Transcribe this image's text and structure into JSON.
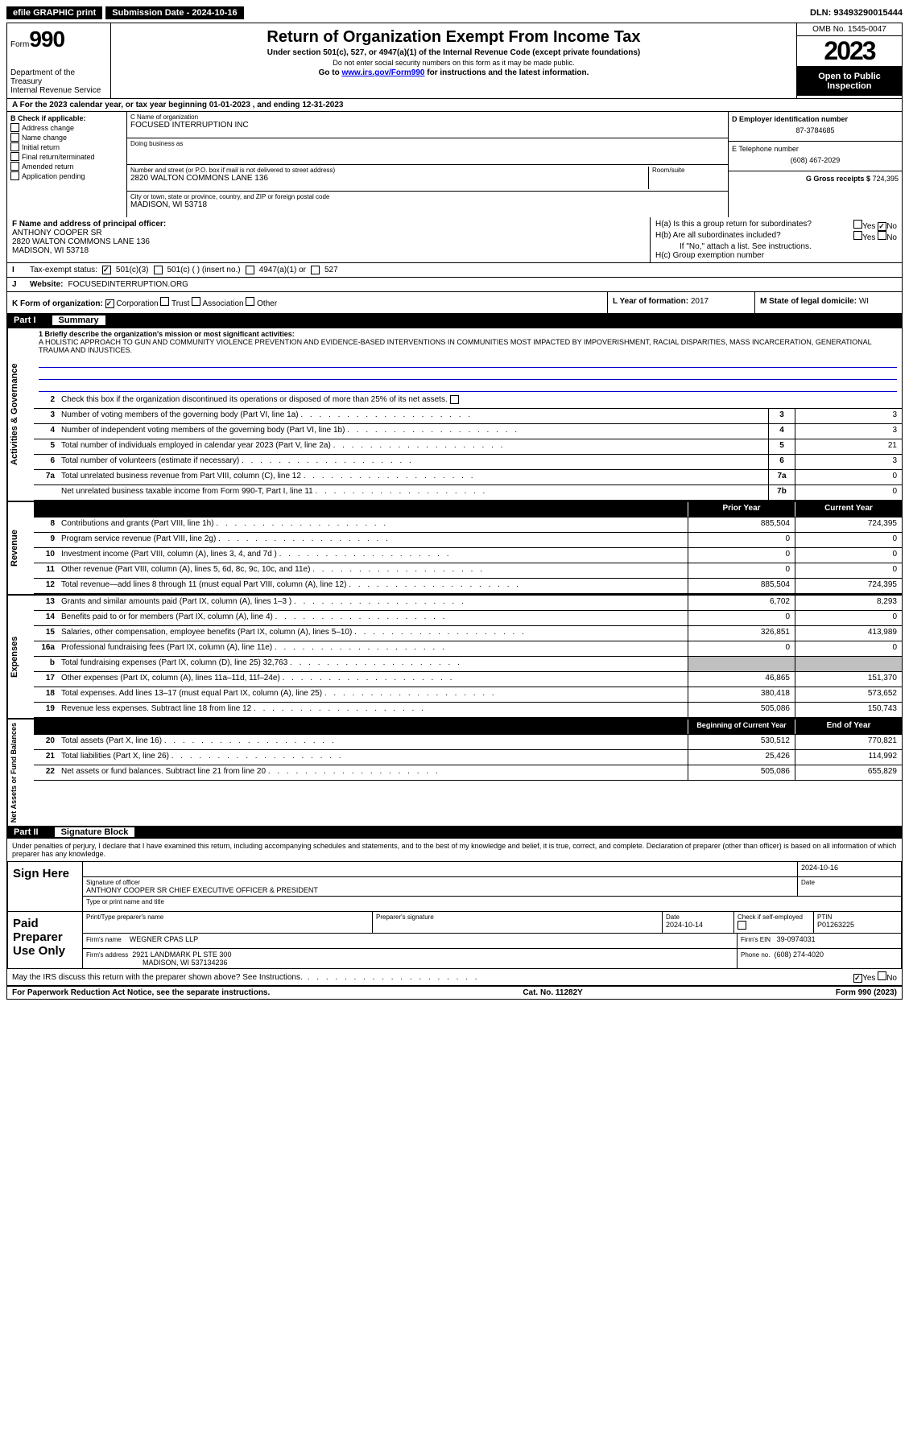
{
  "topbar": {
    "efile": "efile GRAPHIC print",
    "submission_label": "Submission Date - 2024-10-16",
    "dln": "DLN: 93493290015444"
  },
  "header": {
    "form_word": "Form",
    "form_num": "990",
    "dept": "Department of the Treasury",
    "irs": "Internal Revenue Service",
    "title": "Return of Organization Exempt From Income Tax",
    "sub1": "Under section 501(c), 527, or 4947(a)(1) of the Internal Revenue Code (except private foundations)",
    "sub2": "Do not enter social security numbers on this form as it may be made public.",
    "sub3_pre": "Go to ",
    "sub3_link": "www.irs.gov/Form990",
    "sub3_post": " for instructions and the latest information.",
    "omb": "OMB No. 1545-0047",
    "year": "2023",
    "open": "Open to Public Inspection"
  },
  "rowA": "A For the 2023 calendar year, or tax year beginning 01-01-2023    , and ending 12-31-2023",
  "colB": {
    "hdr": "B Check if applicable:",
    "items": [
      "Address change",
      "Name change",
      "Initial return",
      "Final return/terminated",
      "Amended return",
      "Application pending"
    ]
  },
  "colC": {
    "name_lbl": "C Name of organization",
    "name": "FOCUSED INTERRUPTION INC",
    "dba_lbl": "Doing business as",
    "dba": "",
    "addr_lbl": "Number and street (or P.O. box if mail is not delivered to street address)",
    "addr": "2820 WALTON COMMONS LANE 136",
    "room_lbl": "Room/suite",
    "city_lbl": "City or town, state or province, country, and ZIP or foreign postal code",
    "city": "MADISON, WI  53718"
  },
  "colDE": {
    "d_lbl": "D Employer identification number",
    "d_val": "87-3784685",
    "e_lbl": "E Telephone number",
    "e_val": "(608) 467-2029",
    "g_lbl": "G Gross receipts $ ",
    "g_val": "724,395"
  },
  "rowF": {
    "lbl": "F  Name and address of principal officer:",
    "name": "ANTHONY COOPER SR",
    "addr1": "2820 WALTON COMMONS LANE 136",
    "addr2": "MADISON, WI  53718"
  },
  "rowH": {
    "ha": "H(a)  Is this a group return for subordinates?",
    "hb": "H(b)  Are all subordinates included?",
    "hb_note": "If \"No,\" attach a list. See instructions.",
    "hc": "H(c)  Group exemption number",
    "yes": "Yes",
    "no": "No"
  },
  "rowI": {
    "lbl": "Tax-exempt status:",
    "c3": "501(c)(3)",
    "c_other": "501(c) (  ) (insert no.)",
    "a4947": "4947(a)(1) or",
    "s527": "527"
  },
  "rowJ": {
    "lbl": "Website:",
    "val": "FOCUSEDINTERRUPTION.ORG"
  },
  "rowK": {
    "lbl": "K Form of organization:",
    "corp": "Corporation",
    "trust": "Trust",
    "assoc": "Association",
    "other": "Other"
  },
  "rowL": {
    "lbl": "L Year of formation: ",
    "val": "2017"
  },
  "rowM": {
    "lbl": "M State of legal domicile: ",
    "val": "WI"
  },
  "part1": {
    "num": "Part I",
    "title": "Summary"
  },
  "part2": {
    "num": "Part II",
    "title": "Signature Block"
  },
  "side_labels": {
    "ag": "Activities & Governance",
    "rev": "Revenue",
    "exp": "Expenses",
    "na": "Net Assets or Fund Balances"
  },
  "mission": {
    "lbl": "1  Briefly describe the organization's mission or most significant activities:",
    "text": "A HOLISTIC APPROACH TO GUN AND COMMUNITY VIOLENCE PREVENTION AND EVIDENCE-BASED INTERVENTIONS IN COMMUNITIES MOST IMPACTED BY IMPOVERISHMENT, RACIAL DISPARITIES, MASS INCARCERATION, GENERATIONAL TRAUMA AND INJUSTICES."
  },
  "line2": "Check this box       if the organization discontinued its operations or disposed of more than 25% of its net assets.",
  "lines_simple": [
    {
      "n": "3",
      "t": "Number of voting members of the governing body (Part VI, line 1a)",
      "b": "3",
      "v": "3"
    },
    {
      "n": "4",
      "t": "Number of independent voting members of the governing body (Part VI, line 1b)",
      "b": "4",
      "v": "3"
    },
    {
      "n": "5",
      "t": "Total number of individuals employed in calendar year 2023 (Part V, line 2a)",
      "b": "5",
      "v": "21"
    },
    {
      "n": "6",
      "t": "Total number of volunteers (estimate if necessary)",
      "b": "6",
      "v": "3"
    },
    {
      "n": "7a",
      "t": "Total unrelated business revenue from Part VIII, column (C), line 12",
      "b": "7a",
      "v": "0"
    },
    {
      "n": "",
      "t": "Net unrelated business taxable income from Form 990-T, Part I, line 11",
      "b": "7b",
      "v": "0"
    }
  ],
  "year_headers": {
    "prior": "Prior Year",
    "current": "Current Year",
    "boy": "Beginning of Current Year",
    "eoy": "End of Year"
  },
  "revenue_lines": [
    {
      "n": "8",
      "t": "Contributions and grants (Part VIII, line 1h)",
      "p": "885,504",
      "c": "724,395"
    },
    {
      "n": "9",
      "t": "Program service revenue (Part VIII, line 2g)",
      "p": "0",
      "c": "0"
    },
    {
      "n": "10",
      "t": "Investment income (Part VIII, column (A), lines 3, 4, and 7d )",
      "p": "0",
      "c": "0"
    },
    {
      "n": "11",
      "t": "Other revenue (Part VIII, column (A), lines 5, 6d, 8c, 9c, 10c, and 11e)",
      "p": "0",
      "c": "0"
    },
    {
      "n": "12",
      "t": "Total revenue—add lines 8 through 11 (must equal Part VIII, column (A), line 12)",
      "p": "885,504",
      "c": "724,395"
    }
  ],
  "expense_lines": [
    {
      "n": "13",
      "t": "Grants and similar amounts paid (Part IX, column (A), lines 1–3 )",
      "p": "6,702",
      "c": "8,293"
    },
    {
      "n": "14",
      "t": "Benefits paid to or for members (Part IX, column (A), line 4)",
      "p": "0",
      "c": "0"
    },
    {
      "n": "15",
      "t": "Salaries, other compensation, employee benefits (Part IX, column (A), lines 5–10)",
      "p": "326,851",
      "c": "413,989"
    },
    {
      "n": "16a",
      "t": "Professional fundraising fees (Part IX, column (A), line 11e)",
      "p": "0",
      "c": "0"
    },
    {
      "n": "b",
      "t": "Total fundraising expenses (Part IX, column (D), line 25) 32,763",
      "p": "__shaded__",
      "c": "__shaded__"
    },
    {
      "n": "17",
      "t": "Other expenses (Part IX, column (A), lines 11a–11d, 11f–24e)",
      "p": "46,865",
      "c": "151,370"
    },
    {
      "n": "18",
      "t": "Total expenses. Add lines 13–17 (must equal Part IX, column (A), line 25)",
      "p": "380,418",
      "c": "573,652"
    },
    {
      "n": "19",
      "t": "Revenue less expenses. Subtract line 18 from line 12",
      "p": "505,086",
      "c": "150,743"
    }
  ],
  "na_lines": [
    {
      "n": "20",
      "t": "Total assets (Part X, line 16)",
      "p": "530,512",
      "c": "770,821"
    },
    {
      "n": "21",
      "t": "Total liabilities (Part X, line 26)",
      "p": "25,426",
      "c": "114,992"
    },
    {
      "n": "22",
      "t": "Net assets or fund balances. Subtract line 21 from line 20",
      "p": "505,086",
      "c": "655,829"
    }
  ],
  "sig": {
    "perjury": "Under penalties of perjury, I declare that I have examined this return, including accompanying schedules and statements, and to the best of my knowledge and belief, it is true, correct, and complete. Declaration of preparer (other than officer) is based on all information of which preparer has any knowledge.",
    "sign_here": "Sign Here",
    "sig_officer_lbl": "Signature of officer",
    "officer_name": "ANTHONY COOPER SR  CHIEF EXECUTIVE OFFICER & PRESIDENT",
    "type_name_lbl": "Type or print name and title",
    "date_lbl": "Date",
    "date_val": "2024-10-16",
    "paid": "Paid Preparer Use Only",
    "prep_name_lbl": "Print/Type preparer's name",
    "prep_sig_lbl": "Preparer's signature",
    "prep_date": "2024-10-14",
    "check_self": "Check        if self-employed",
    "ptin_lbl": "PTIN",
    "ptin": "P01263225",
    "firm_name_lbl": "Firm's name",
    "firm_name": "WEGNER CPAS LLP",
    "firm_ein_lbl": "Firm's EIN",
    "firm_ein": "39-0974031",
    "firm_addr_lbl": "Firm's address",
    "firm_addr1": "2921 LANDMARK PL STE 300",
    "firm_addr2": "MADISON, WI  537134236",
    "phone_lbl": "Phone no.",
    "phone": "(608) 274-4020",
    "discuss": "May the IRS discuss this return with the preparer shown above? See Instructions.",
    "yes": "Yes",
    "no": "No"
  },
  "footer": {
    "pra": "For Paperwork Reduction Act Notice, see the separate instructions.",
    "cat": "Cat. No. 11282Y",
    "form": "Form 990 (2023)"
  }
}
